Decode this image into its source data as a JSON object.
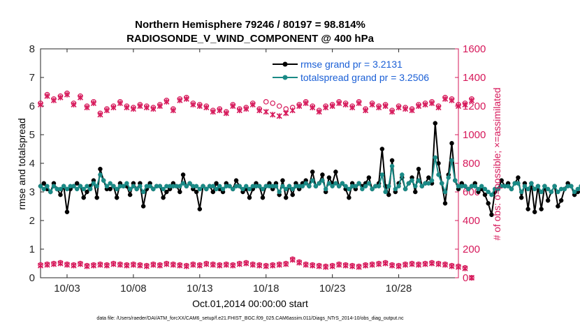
{
  "chart_data": {
    "type": "line",
    "title": "Northern Hemisphere 79246 / 80197 = 98.814%",
    "subtitle": "RADIOSONDE_V_WIND_COMPONENT @ 400 hPa",
    "xlabel": "Oct.01,2014 00:00:00 start",
    "ylabel": "rmse and totalspread",
    "ylabel_right": "# of obs: o=possible; ×=assimilated",
    "footnote": "data file: /Users/raeder/DAI/ATM_forcXX/CAM6_setup/f.e21.FHIST_BGC.f09_025.CAM6assim.011/Diags_NTrS_2014-10/obs_diag_output.nc",
    "x_tick_labels": [
      "10/03",
      "10/08",
      "10/13",
      "10/18",
      "10/23",
      "10/28"
    ],
    "x_tick_days": [
      3,
      8,
      13,
      18,
      23,
      28
    ],
    "xlim": [
      1,
      32.5
    ],
    "ylim": [
      0,
      8
    ],
    "y_ticks": [
      0,
      1,
      2,
      3,
      4,
      5,
      6,
      7,
      8
    ],
    "ylim_right": [
      0,
      1600
    ],
    "y_ticks_right": [
      0,
      200,
      400,
      600,
      800,
      1000,
      1200,
      1400,
      1600
    ],
    "legend": {
      "position": "top-right",
      "entries": [
        "rmse grand pr = 3.2131",
        "totalspread grand pr = 3.2506"
      ]
    },
    "colors": {
      "rmse": "#000000",
      "totalspread": "#1a8a86",
      "obs": "#d6185a",
      "legend_text": "#1a5fd6"
    },
    "series": [
      {
        "name": "rmse",
        "axis": "left",
        "style": "black line with filled markers",
        "values": [
          3.2,
          3.3,
          3.1,
          3.0,
          3.3,
          3.1,
          2.9,
          3.2,
          2.3,
          3.1,
          3.2,
          3.3,
          3.2,
          2.8,
          3.0,
          3.2,
          3.4,
          2.8,
          3.8,
          3.4,
          3.1,
          3.1,
          3.2,
          2.8,
          3.3,
          3.2,
          3.2,
          2.9,
          3.3,
          3.1,
          3.3,
          2.5,
          3.1,
          3.3,
          3.1,
          3.2,
          3.2,
          2.8,
          3.0,
          3.1,
          3.3,
          3.2,
          3.0,
          3.6,
          3.2,
          3.3,
          3.1,
          3.0,
          2.4,
          3.2,
          3.1,
          3.2,
          3.0,
          3.3,
          3.1,
          3.0,
          3.3,
          3.2,
          3.1,
          3.4,
          3.2,
          3.0,
          3.1,
          2.8,
          3.1,
          3.3,
          3.2,
          2.8,
          3.2,
          3.3,
          3.1,
          3.3,
          2.9,
          3.4,
          2.8,
          3.2,
          2.9,
          3.3,
          3.1,
          3.3,
          3.4,
          3.2,
          3.7,
          3.2,
          3.3,
          3.6,
          3.0,
          3.5,
          3.3,
          3.7,
          3.2,
          3.3,
          3.1,
          2.8,
          3.3,
          3.1,
          3.3,
          3.2,
          3.3,
          3.5,
          3.1,
          3.2,
          3.3,
          4.5,
          3.2,
          2.9,
          4.1,
          3.0,
          3.3,
          3.5,
          3.1,
          3.3,
          3.5,
          3.0,
          3.8,
          3.2,
          3.3,
          3.5,
          3.3,
          5.4,
          4.0,
          3.3,
          2.6,
          3.6,
          4.7,
          3.4,
          3.1,
          3.3,
          3.2,
          3.1,
          3.2,
          3.3,
          3.0,
          3.1,
          2.9,
          2.6,
          2.2,
          3.0,
          3.1,
          3.4,
          3.2,
          3.3,
          3.1,
          3.3,
          3.5,
          2.8,
          3.3,
          2.4,
          3.3,
          2.3,
          3.2,
          2.4,
          3.2,
          2.7,
          3.0,
          3.2,
          2.5,
          2.7,
          3.1,
          3.3,
          3.2,
          2.9,
          3.0,
          3.2,
          3.1,
          3.1,
          3.3,
          3.1,
          3.3,
          3.8,
          3.2,
          2.9,
          2.8
        ],
        "values_note": "6-hourly cycles starting Oct 1, 00Z"
      },
      {
        "name": "totalspread",
        "axis": "left",
        "style": "teal line with filled markers",
        "values": [
          3.2,
          3.1,
          3.2,
          3.0,
          3.2,
          3.1,
          3.1,
          3.2,
          3.1,
          3.2,
          3.2,
          3.1,
          3.2,
          3.1,
          3.2,
          3.1,
          3.3,
          3.2,
          3.6,
          3.4,
          3.2,
          3.3,
          3.2,
          3.1,
          3.2,
          3.2,
          3.3,
          3.1,
          3.2,
          3.1,
          3.2,
          3.0,
          3.2,
          3.2,
          3.1,
          3.2,
          3.2,
          3.1,
          3.2,
          3.2,
          3.2,
          3.2,
          3.2,
          3.3,
          3.2,
          3.3,
          3.2,
          3.2,
          3.1,
          3.2,
          3.1,
          3.2,
          3.2,
          3.1,
          3.2,
          3.1,
          3.2,
          3.2,
          3.1,
          3.2,
          3.2,
          3.1,
          3.2,
          3.1,
          3.2,
          3.2,
          3.2,
          3.1,
          3.2,
          3.2,
          3.2,
          3.2,
          3.0,
          3.2,
          3.1,
          3.2,
          3.1,
          3.2,
          3.2,
          3.2,
          3.3,
          3.2,
          3.4,
          3.2,
          3.3,
          3.4,
          3.1,
          3.3,
          3.2,
          3.3,
          3.2,
          3.3,
          3.2,
          3.1,
          3.2,
          3.2,
          3.3,
          3.1,
          3.2,
          3.3,
          3.1,
          3.2,
          3.2,
          3.6,
          3.0,
          3.2,
          3.9,
          3.1,
          3.2,
          3.6,
          3.1,
          3.3,
          3.4,
          3.2,
          3.4,
          3.2,
          3.3,
          3.3,
          3.4,
          4.2,
          3.6,
          3.3,
          3.0,
          3.5,
          4.1,
          3.4,
          3.2,
          3.2,
          3.2,
          3.1,
          3.2,
          3.2,
          3.1,
          3.2,
          3.1,
          3.0,
          2.9,
          3.1,
          3.1,
          3.2,
          3.2,
          3.2,
          3.1,
          3.3,
          3.3,
          3.0,
          3.2,
          3.1,
          3.3,
          3.1,
          3.2,
          3.0,
          3.2,
          3.1,
          3.0,
          3.2,
          3.0,
          3.1,
          3.1,
          3.2,
          3.2,
          3.0,
          3.1,
          3.2,
          3.1,
          3.1,
          3.2,
          3.1,
          3.2,
          3.3,
          3.2,
          3.1,
          3.1
        ]
      },
      {
        "name": "obs_possible",
        "axis": "right",
        "style": "open circles",
        "day_start": 1,
        "day_step": 0.5,
        "values": [
          1220,
          1280,
          1250,
          1270,
          1290,
          1220,
          1270,
          1200,
          1230,
          1150,
          1180,
          1200,
          1230,
          1200,
          1190,
          1210,
          1200,
          1190,
          1210,
          1240,
          1180,
          1250,
          1260,
          1220,
          1210,
          1200,
          1170,
          1180,
          1160,
          1210,
          1180,
          1190,
          1220,
          1180,
          1230,
          1220,
          1200,
          1180,
          1190,
          1210,
          1230,
          1200,
          1170,
          1200,
          1210,
          1230,
          1220,
          1200,
          1230,
          1180,
          1220,
          1200,
          1210,
          1170,
          1200,
          1190,
          1180,
          1210,
          1220,
          1230,
          1200,
          1260,
          1250,
          1210,
          1220,
          1250
        ],
        "low_values": [
          90,
          95,
          100,
          105,
          95,
          90,
          100,
          85,
          90,
          95,
          90,
          100,
          95,
          90,
          95,
          90,
          85,
          95,
          90,
          100,
          95,
          90,
          85,
          95,
          90,
          100,
          95,
          90,
          95,
          90,
          100,
          105,
          95,
          90,
          85,
          90,
          95,
          100,
          130,
          110,
          95,
          90,
          85,
          80,
          85,
          95,
          90,
          85,
          80,
          90,
          95,
          100,
          105,
          90,
          85,
          95,
          100,
          95,
          100,
          105,
          100,
          95,
          85,
          80,
          70,
          0
        ]
      },
      {
        "name": "obs_assimilated",
        "axis": "right",
        "style": "crosses (asterisk-like)",
        "day_start": 1,
        "day_step": 0.5,
        "values": [
          1210,
          1270,
          1240,
          1260,
          1280,
          1210,
          1260,
          1190,
          1220,
          1140,
          1170,
          1190,
          1220,
          1190,
          1180,
          1200,
          1190,
          1180,
          1200,
          1230,
          1170,
          1240,
          1250,
          1210,
          1200,
          1190,
          1160,
          1170,
          1150,
          1200,
          1170,
          1180,
          1210,
          1170,
          1160,
          1140,
          1130,
          1150,
          1170,
          1200,
          1220,
          1190,
          1160,
          1190,
          1200,
          1220,
          1210,
          1190,
          1220,
          1170,
          1210,
          1190,
          1200,
          1160,
          1190,
          1180,
          1170,
          1200,
          1210,
          1220,
          1190,
          1250,
          1240,
          1200,
          1210,
          1240
        ],
        "low_values": [
          85,
          90,
          95,
          100,
          90,
          85,
          95,
          80,
          85,
          90,
          85,
          95,
          90,
          85,
          90,
          85,
          80,
          90,
          85,
          95,
          90,
          85,
          80,
          90,
          85,
          95,
          90,
          85,
          90,
          85,
          95,
          100,
          90,
          85,
          80,
          85,
          90,
          95,
          125,
          105,
          90,
          85,
          80,
          75,
          80,
          90,
          85,
          80,
          75,
          85,
          90,
          95,
          100,
          85,
          80,
          90,
          95,
          90,
          95,
          100,
          95,
          90,
          80,
          75,
          65,
          0
        ]
      }
    ]
  }
}
